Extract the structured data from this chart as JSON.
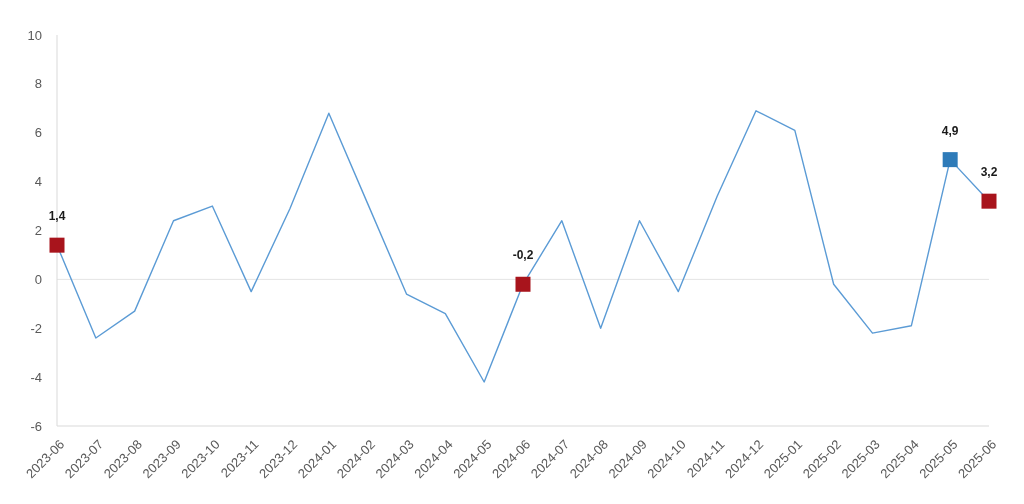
{
  "chart_data": {
    "type": "line",
    "categories": [
      "2023-06",
      "2023-07",
      "2023-08",
      "2023-09",
      "2023-10",
      "2023-11",
      "2023-12",
      "2024-01",
      "2024-02",
      "2024-03",
      "2024-04",
      "2024-05",
      "2024-06",
      "2024-07",
      "2024-08",
      "2024-09",
      "2024-10",
      "2024-11",
      "2024-12",
      "2025-01",
      "2025-02",
      "2025-03",
      "2025-04",
      "2025-05",
      "2025-06"
    ],
    "series": [
      {
        "color": "#5b9bd5",
        "marker": "none",
        "values": [
          1.4,
          -2.4,
          -1.3,
          2.4,
          3.0,
          -0.5,
          2.9,
          6.8,
          3.1,
          -0.6,
          -1.4,
          -4.2,
          -0.2,
          2.4,
          -2.0,
          2.4,
          -0.5,
          3.4,
          6.9,
          6.1,
          -0.2,
          -2.2,
          -1.9,
          4.9,
          3.2
        ]
      },
      {
        "type": "scatter",
        "marker": "square",
        "values": [
          1.4,
          null,
          null,
          null,
          null,
          null,
          null,
          null,
          null,
          null,
          null,
          null,
          -0.2,
          null,
          null,
          null,
          null,
          null,
          null,
          null,
          null,
          null,
          null,
          4.9,
          3.2
        ],
        "colors": [
          "#a8141c",
          null,
          null,
          null,
          null,
          null,
          null,
          null,
          null,
          null,
          null,
          null,
          "#a8141c",
          null,
          null,
          null,
          null,
          null,
          null,
          null,
          null,
          null,
          null,
          "#2e7bb9",
          "#a8141c"
        ],
        "value_labels": [
          "1,4",
          null,
          null,
          null,
          null,
          null,
          null,
          null,
          null,
          null,
          null,
          null,
          "-0,2",
          null,
          null,
          null,
          null,
          null,
          null,
          null,
          null,
          null,
          null,
          "4,9",
          "3,2"
        ]
      }
    ],
    "ylim": [
      -6,
      10
    ],
    "yticks": [
      -6,
      -4,
      -2,
      0,
      2,
      4,
      6,
      8,
      10
    ],
    "grid": false,
    "ref_lines": [
      {
        "axis": "y",
        "value": 0,
        "color": "#e4e4e4"
      }
    ]
  }
}
